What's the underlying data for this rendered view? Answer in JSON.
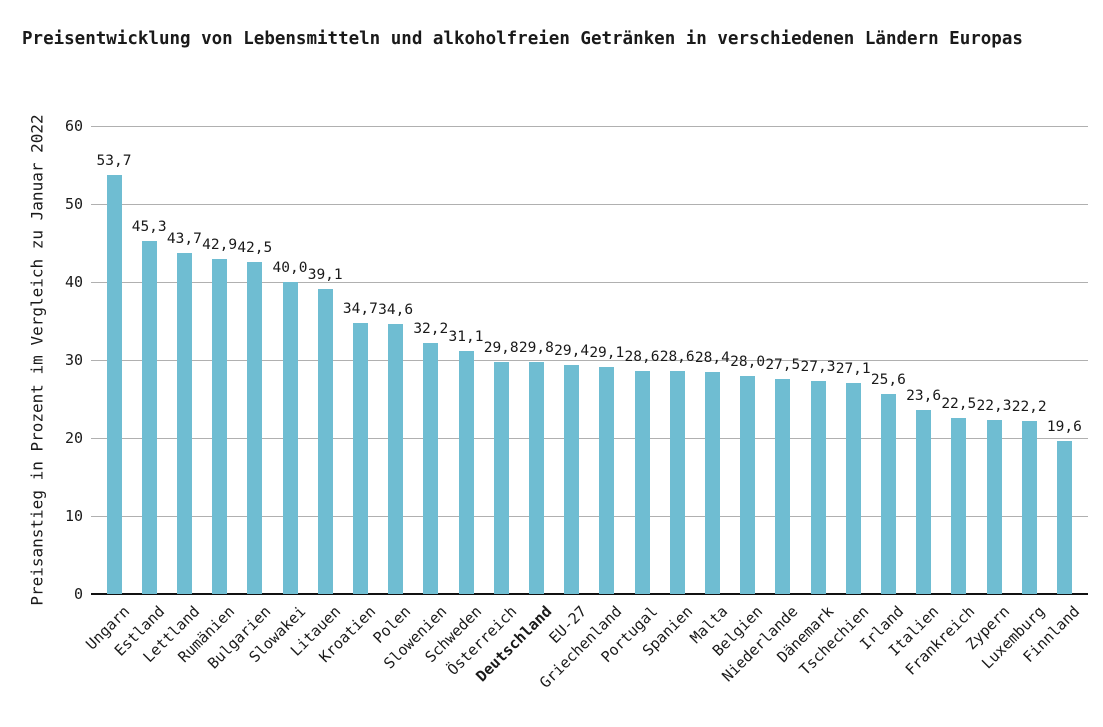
{
  "chart_data": {
    "type": "bar",
    "title": "Preisentwicklung von Lebensmitteln und alkoholfreien Getränken in verschiedenen Ländern Europas",
    "xlabel": "",
    "ylabel": "Preisanstieg in Prozent im Vergleich zu Januar 2022",
    "categories": [
      "Ungarn",
      "Estland",
      "Lettland",
      "Rumänien",
      "Bulgarien",
      "Slowakei",
      "Litauen",
      "Kroatien",
      "Polen",
      "Slowenien",
      "Schweden",
      "Österreich",
      "Deutschland",
      "EU-27",
      "Griechenland",
      "Portugal",
      "Spanien",
      "Malta",
      "Belgien",
      "Niederlande",
      "Dänemark",
      "Tschechien",
      "Irland",
      "Italien",
      "Frankreich",
      "Zypern",
      "Luxemburg",
      "Finnland"
    ],
    "values": [
      53.7,
      45.3,
      43.7,
      42.9,
      42.5,
      40.0,
      39.1,
      34.7,
      34.6,
      32.2,
      31.1,
      29.8,
      29.8,
      29.4,
      29.1,
      28.6,
      28.6,
      28.4,
      28.0,
      27.5,
      27.3,
      27.1,
      25.6,
      23.6,
      22.5,
      22.3,
      22.2,
      19.6
    ],
    "value_labels": [
      "53,7",
      "45,3",
      "43,7",
      "42,9",
      "42,5",
      "40,0",
      "39,1",
      "34,7",
      "34,6",
      "32,2",
      "31,1",
      "29,8",
      "29,8",
      "29,4",
      "29,1",
      "28,6",
      "28,6",
      "28,4",
      "28,0",
      "27,5",
      "27,3",
      "27,1",
      "25,6",
      "23,6",
      "22,5",
      "22,3",
      "22,2",
      "19,6"
    ],
    "yticks": [
      0,
      10,
      20,
      30,
      40,
      50,
      60
    ],
    "ylim": [
      0,
      60
    ],
    "grid": "horizontal",
    "legend": "none",
    "highlight_category": "Deutschland",
    "colors": {
      "bar": "#6fbdd2",
      "grid": "#b0b0b0",
      "axis": "#111111",
      "text": "#1a1a1a"
    }
  }
}
